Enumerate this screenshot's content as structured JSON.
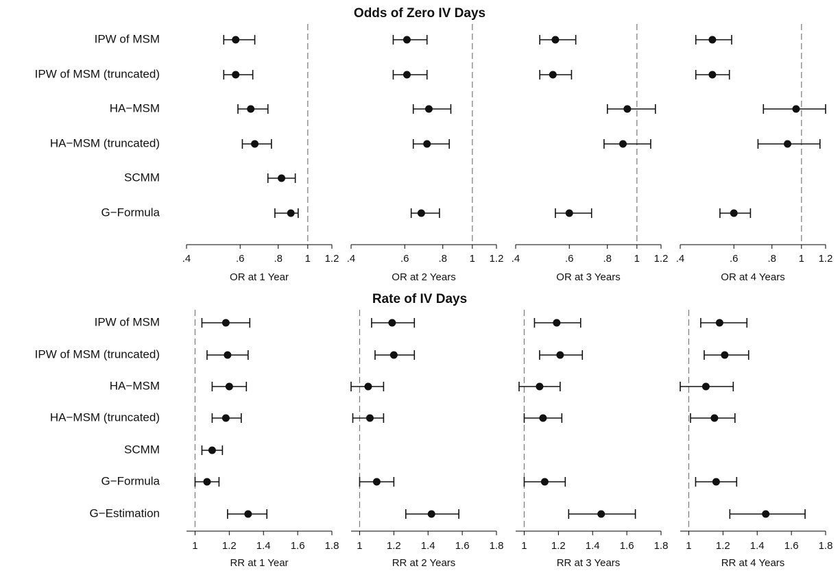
{
  "chart_data": [
    {
      "type": "forest",
      "title": "Odds of Zero IV Days",
      "categories": [
        "IPW of MSM",
        "IPW of MSM (truncated)",
        "HA−MSM",
        "HA−MSM (truncated)",
        "SCMM",
        "G−Formula"
      ],
      "xscale": "log",
      "reference_line": 1,
      "panels": [
        {
          "xlabel": "OR at 1 Year",
          "xlim": [
            0.4,
            1.2
          ],
          "xticks": [
            {
              "value": 0.4,
              "label": ".4"
            },
            {
              "value": 0.6,
              "label": ".6"
            },
            {
              "value": 0.8,
              "label": ".8"
            },
            1,
            1.2
          ],
          "values": [
            0.58,
            0.58,
            0.65,
            0.67,
            0.82,
            0.88
          ],
          "lower": [
            0.53,
            0.53,
            0.59,
            0.61,
            0.74,
            0.78
          ],
          "upper": [
            0.67,
            0.66,
            0.74,
            0.76,
            0.91,
            0.93
          ]
        },
        {
          "xlabel": "OR at 2 Years",
          "xlim": [
            0.4,
            1.2
          ],
          "xticks": [
            {
              "value": 0.4,
              "label": ".4"
            },
            {
              "value": 0.6,
              "label": ".6"
            },
            {
              "value": 0.8,
              "label": ".8"
            },
            1,
            1.2
          ],
          "values": [
            0.61,
            0.61,
            0.72,
            0.71,
            null,
            0.68
          ],
          "lower": [
            0.55,
            0.55,
            0.64,
            0.64,
            null,
            0.63
          ],
          "upper": [
            0.71,
            0.71,
            0.85,
            0.84,
            null,
            0.78
          ]
        },
        {
          "xlabel": "OR at 3 Years",
          "xlim": [
            0.4,
            1.2
          ],
          "xticks": [
            {
              "value": 0.4,
              "label": ".4"
            },
            {
              "value": 0.6,
              "label": ".6"
            },
            {
              "value": 0.8,
              "label": ".8"
            },
            1,
            1.2
          ],
          "values": [
            0.54,
            0.53,
            0.93,
            0.9,
            null,
            0.6
          ],
          "lower": [
            0.48,
            0.48,
            0.8,
            0.78,
            null,
            0.54
          ],
          "upper": [
            0.63,
            0.61,
            1.15,
            1.11,
            null,
            0.71
          ]
        },
        {
          "xlabel": "OR at 4 Years",
          "xlim": [
            0.4,
            1.2
          ],
          "xticks": [
            {
              "value": 0.4,
              "label": ".4"
            },
            {
              "value": 0.6,
              "label": ".6"
            },
            {
              "value": 0.8,
              "label": ".8"
            },
            1,
            1.2
          ],
          "values": [
            0.51,
            0.51,
            0.96,
            0.9,
            null,
            0.6
          ],
          "lower": [
            0.45,
            0.45,
            0.75,
            0.72,
            null,
            0.54
          ],
          "upper": [
            0.59,
            0.58,
            1.2,
            1.15,
            null,
            0.68
          ]
        }
      ]
    },
    {
      "type": "forest",
      "title": "Rate of IV Days",
      "categories": [
        "IPW of MSM",
        "IPW of MSM (truncated)",
        "HA−MSM",
        "HA−MSM (truncated)",
        "SCMM",
        "G−Formula",
        "G−Estimation"
      ],
      "xscale": "linear",
      "reference_line": 1,
      "panels": [
        {
          "xlabel": "RR at 1 Year",
          "xlim": [
            0.95,
            1.8
          ],
          "xticks": [
            1,
            1.2,
            1.4,
            1.6,
            1.8
          ],
          "values": [
            1.18,
            1.19,
            1.2,
            1.18,
            1.1,
            1.07,
            1.31
          ],
          "lower": [
            1.04,
            1.07,
            1.1,
            1.1,
            1.04,
            1.0,
            1.19
          ],
          "upper": [
            1.32,
            1.31,
            1.3,
            1.27,
            1.16,
            1.14,
            1.42
          ]
        },
        {
          "xlabel": "RR at 2 Years",
          "xlim": [
            0.95,
            1.8
          ],
          "xticks": [
            1,
            1.2,
            1.4,
            1.6,
            1.8
          ],
          "values": [
            1.19,
            1.2,
            1.05,
            1.06,
            null,
            1.1,
            1.42
          ],
          "lower": [
            1.07,
            1.09,
            0.95,
            0.96,
            null,
            1.0,
            1.27
          ],
          "upper": [
            1.32,
            1.32,
            1.14,
            1.14,
            null,
            1.2,
            1.58
          ]
        },
        {
          "xlabel": "RR at 3 Years",
          "xlim": [
            0.95,
            1.8
          ],
          "xticks": [
            1,
            1.2,
            1.4,
            1.6,
            1.8
          ],
          "values": [
            1.19,
            1.21,
            1.09,
            1.11,
            null,
            1.12,
            1.45
          ],
          "lower": [
            1.06,
            1.09,
            0.97,
            1.0,
            null,
            1.0,
            1.26
          ],
          "upper": [
            1.33,
            1.34,
            1.21,
            1.22,
            null,
            1.24,
            1.65
          ]
        },
        {
          "xlabel": "RR at 4 Years",
          "xlim": [
            0.95,
            1.8
          ],
          "xticks": [
            1,
            1.2,
            1.4,
            1.6,
            1.8
          ],
          "values": [
            1.18,
            1.21,
            1.1,
            1.15,
            null,
            1.16,
            1.45
          ],
          "lower": [
            1.07,
            1.09,
            0.95,
            1.01,
            null,
            1.04,
            1.24
          ],
          "upper": [
            1.34,
            1.35,
            1.26,
            1.27,
            null,
            1.28,
            1.68
          ]
        }
      ]
    }
  ]
}
